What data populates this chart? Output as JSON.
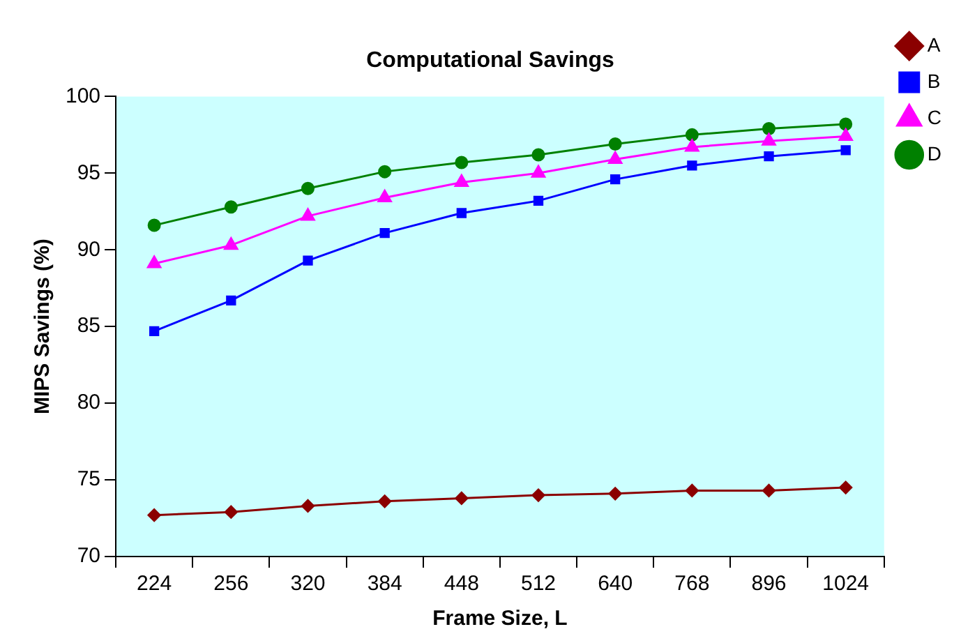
{
  "chart_data": {
    "type": "line",
    "title": "Computational Savings",
    "xlabel": "Frame Size, L",
    "ylabel": "MIPS Savings (%)",
    "categories": [
      "224",
      "256",
      "320",
      "384",
      "448",
      "512",
      "640",
      "768",
      "896",
      "1024"
    ],
    "series": [
      {
        "name": "A",
        "color": "#8b0000",
        "marker": "diamond",
        "values": [
          72.7,
          72.9,
          73.3,
          73.6,
          73.8,
          74.0,
          74.1,
          74.3,
          74.3,
          74.5
        ]
      },
      {
        "name": "B",
        "color": "#0000ff",
        "marker": "square",
        "values": [
          84.7,
          86.7,
          89.3,
          91.1,
          92.4,
          93.2,
          94.6,
          95.5,
          96.1,
          96.5
        ]
      },
      {
        "name": "C",
        "color": "#ff00ff",
        "marker": "triangle",
        "values": [
          89.1,
          90.3,
          92.2,
          93.4,
          94.4,
          95.0,
          95.9,
          96.7,
          97.1,
          97.4
        ]
      },
      {
        "name": "D",
        "color": "#008000",
        "marker": "circle",
        "values": [
          91.6,
          92.8,
          94.0,
          95.1,
          95.7,
          96.2,
          96.9,
          97.5,
          97.9,
          98.2
        ]
      }
    ],
    "ylim": [
      70,
      100
    ],
    "yticks": [
      70,
      75,
      80,
      85,
      90,
      95,
      100
    ],
    "legend": "top right"
  }
}
